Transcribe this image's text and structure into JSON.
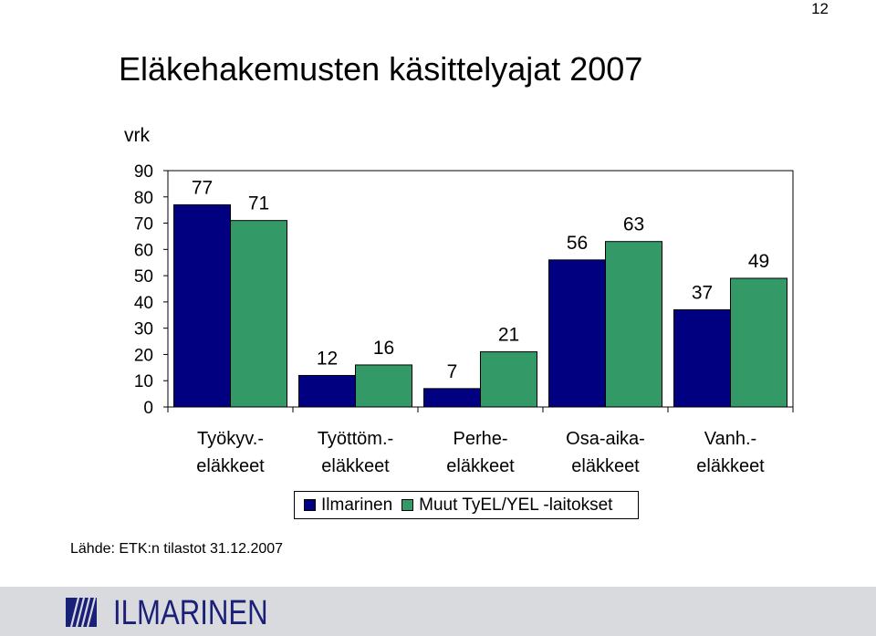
{
  "page_number": "12",
  "title": "Eläkehakemusten käsittelyajat 2007",
  "ylabel": "vrk",
  "source": "Lähde: ETK:n tilastot 31.12.2007",
  "logo_text": "ILMARINEN",
  "colors": {
    "ilmarinen": "#000080",
    "muut": "#339966",
    "footer": "#d9dadd",
    "brand": "#1a1f78"
  },
  "chart_data": {
    "type": "bar",
    "title": "Eläkehakemusten käsittelyajat 2007",
    "ylabel": "vrk",
    "ylim": [
      0,
      90
    ],
    "yticks": [
      0,
      10,
      20,
      30,
      40,
      50,
      60,
      70,
      80,
      90
    ],
    "categories": [
      [
        "Työkyv.-",
        "eläkkeet"
      ],
      [
        "Työttöm.-",
        "eläkkeet"
      ],
      [
        "Perhe-",
        "eläkkeet"
      ],
      [
        "Osa-aika-",
        "eläkkeet"
      ],
      [
        "Vanh.-",
        "eläkkeet"
      ]
    ],
    "series": [
      {
        "name": "Ilmarinen",
        "color": "#000080",
        "values": [
          77,
          12,
          7,
          56,
          37
        ]
      },
      {
        "name": "Muut TyEL/YEL -laitokset",
        "color": "#339966",
        "values": [
          71,
          16,
          21,
          63,
          49
        ]
      }
    ],
    "legend": "bottom",
    "grid": false
  }
}
